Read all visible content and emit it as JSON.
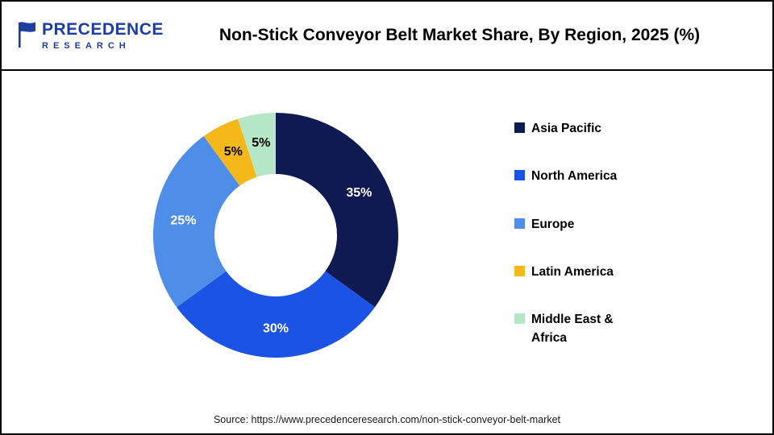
{
  "logo": {
    "line1": "PRECEDENCE",
    "line2": "RESEARCH",
    "color": "#1e3da0"
  },
  "header": {
    "title": "Non-Stick Conveyor Belt Market Share, By Region, 2025 (%)"
  },
  "chart_data": {
    "type": "pie",
    "variant": "donut",
    "title": "Non-Stick Conveyor Belt Market Share, By Region, 2025 (%)",
    "categories": [
      "Asia Pacific",
      "North America",
      "Europe",
      "Latin America",
      "Middle East & Africa"
    ],
    "values": [
      35,
      30,
      25,
      5,
      5
    ],
    "unit": "%",
    "labels": [
      "35%",
      "30%",
      "25%",
      "5%",
      "5%"
    ],
    "colors": [
      "#101a52",
      "#1b53e4",
      "#4f8ee8",
      "#f5b81a",
      "#b5e6c6"
    ],
    "label_colors": [
      "#ffffff",
      "#ffffff",
      "#ffffff",
      "#000000",
      "#000000"
    ],
    "start_angle_deg": 0,
    "direction": "clockwise",
    "inner_radius_ratio": 0.5,
    "legend_position": "right",
    "grid": false
  },
  "footer": {
    "source": "Source: https://www.precedenceresearch.com/non-stick-conveyor-belt-market"
  }
}
